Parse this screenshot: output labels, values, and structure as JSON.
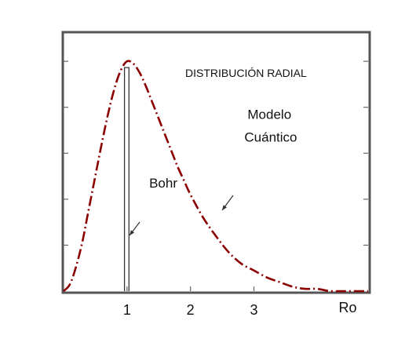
{
  "chart_data": {
    "type": "line",
    "title": "DISTRIBUCIÓN RADIAL",
    "xlabel": "",
    "ylabel": "",
    "xlim": [
      0,
      4.8
    ],
    "ylim": [
      0,
      1.12
    ],
    "x_ticks": [
      1,
      2,
      3
    ],
    "x_tick_labels": [
      "1",
      "2",
      "3"
    ],
    "end_tick_label": "Ro",
    "series": [
      {
        "name": "Modelo Cuántico",
        "style": "dash-dot",
        "color": "#8b0000",
        "x": [
          0,
          0.1,
          0.2,
          0.3,
          0.4,
          0.5,
          0.6,
          0.7,
          0.8,
          0.9,
          1.0,
          1.1,
          1.2,
          1.3,
          1.4,
          1.5,
          1.6,
          1.7,
          1.8,
          1.9,
          2.0,
          2.2,
          2.4,
          2.6,
          2.8,
          3.0,
          3.2,
          3.4,
          3.6,
          3.8,
          4.0,
          4.2,
          4.4,
          4.6,
          4.8
        ],
        "y": [
          0,
          0.03,
          0.11,
          0.22,
          0.36,
          0.5,
          0.64,
          0.77,
          0.88,
          0.96,
          1.0,
          0.99,
          0.95,
          0.89,
          0.82,
          0.75,
          0.68,
          0.61,
          0.54,
          0.48,
          0.42,
          0.32,
          0.24,
          0.17,
          0.12,
          0.09,
          0.06,
          0.04,
          0.02,
          0.01,
          0.01,
          0.0,
          0.0,
          0.0,
          0.0
        ]
      },
      {
        "name": "Bohr",
        "style": "spike",
        "color": "#333333",
        "x": [
          0.96,
          1.03
        ],
        "y": [
          1.0,
          1.0
        ]
      }
    ],
    "annotations": [
      {
        "text": "Bohr",
        "x": 1.35,
        "y": 0.45
      },
      {
        "text": "Modelo",
        "x": 2.9,
        "y": 0.75
      },
      {
        "text": "Cuántico",
        "x": 2.85,
        "y": 0.65
      }
    ],
    "grid": false,
    "legend": "none"
  }
}
